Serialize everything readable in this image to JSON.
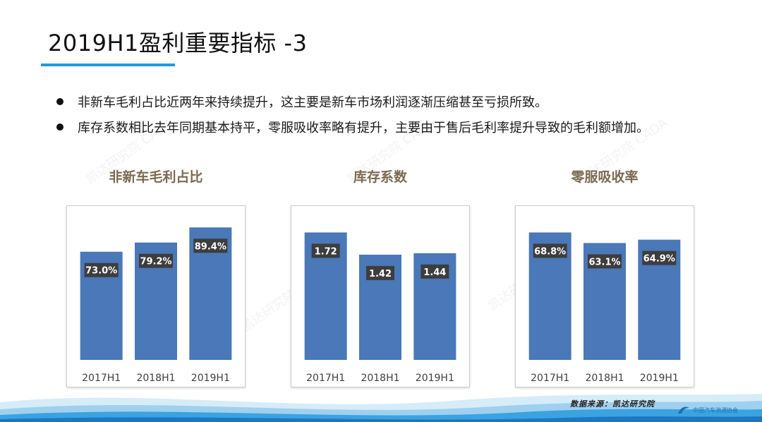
{
  "slide": {
    "title": "2019H1盈利重要指标 -3",
    "bullets": [
      "非新车毛利占比近两年来持续提升，这主要是新车市场利润逐渐压缩甚至亏损所致。",
      "库存系数相比去年同期基本持平，零服吸收率略有提升，主要由于售后毛利率提升导致的毛利额增加。"
    ],
    "source": "数据来源：凯达研究院",
    "watermark": "凯达研究院  CADA",
    "logo_text": "中国汽车流通协会",
    "colors": {
      "accent": "#1e9be0",
      "bar": "#4a78b8",
      "chart_title": "#7a6a4f",
      "label_bg": "#3d3d3d"
    }
  },
  "chart_data": [
    {
      "type": "bar",
      "title": "非新车毛利占比",
      "categories": [
        "2017H1",
        "2018H1",
        "2019H1"
      ],
      "values": [
        73.0,
        79.2,
        89.4
      ],
      "labels": [
        "73.0%",
        "79.2%",
        "89.4%"
      ],
      "ylim": [
        0,
        100
      ],
      "grid": false
    },
    {
      "type": "bar",
      "title": "库存系数",
      "categories": [
        "2017H1",
        "2018H1",
        "2019H1"
      ],
      "values": [
        1.72,
        1.42,
        1.44
      ],
      "labels": [
        "1.72",
        "1.42",
        "1.44"
      ],
      "ylim": [
        0,
        2.0
      ],
      "grid": false
    },
    {
      "type": "bar",
      "title": "零服吸收率",
      "categories": [
        "2017H1",
        "2018H1",
        "2019H1"
      ],
      "values": [
        68.8,
        63.1,
        64.9
      ],
      "labels": [
        "68.8%",
        "63.1%",
        "64.9%"
      ],
      "ylim": [
        0,
        80
      ],
      "grid": false
    }
  ]
}
